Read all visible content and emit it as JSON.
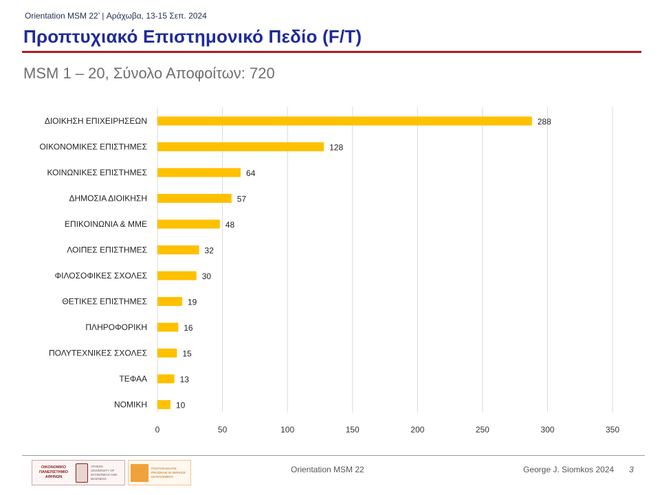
{
  "header": {
    "event": "Orientation MSM 22’ | Αράχωβα, 13-15 Σεπ. 2024",
    "title": "Προπτυχιακό Επιστημονικό Πεδίο (F/T)",
    "subtitle": "MSM 1 – 20, Σύνολο Αποφοίτων: 720"
  },
  "colors": {
    "bar": "#ffc000",
    "title": "#1f2a9a",
    "rule": "#b11c1c"
  },
  "chart_data": {
    "type": "bar",
    "orientation": "horizontal",
    "categories": [
      "ΔΙΟΙΚΗΣΗ ΕΠΙΧΕΙΡΗΣΕΩΝ",
      "ΟΙΚΟΝΟΜΙΚΕΣ ΕΠΙΣΤΗΜΕΣ",
      "ΚΟΙΝΩΝΙΚΕΣ ΕΠΙΣΤΗΜΕΣ",
      "ΔΗΜΟΣΙΑ ΔΙΟΙΚΗΣΗ",
      "ΕΠΙΚΟΙΝΩΝΙΑ & ΜΜΕ",
      "ΛΟΙΠΕΣ ΕΠΙΣΤΗΜΕΣ",
      "ΦΙΛΟΣΟΦΙΚΕΣ ΣΧΟΛΕΣ",
      "ΘΕΤΙΚΕΣ ΕΠΙΣΤΗΜΕΣ",
      "ΠΛΗΡΟΦΟΡΙΚΗ",
      "ΠΟΛΥΤΕΧΝΙΚΕΣ ΣΧΟΛΕΣ",
      "ΤΕΦΑΑ",
      "ΝΟΜΙΚΗ"
    ],
    "values": [
      288,
      128,
      64,
      57,
      48,
      32,
      30,
      19,
      16,
      15,
      13,
      10
    ],
    "xlim": [
      0,
      350
    ],
    "xticks": [
      0,
      50,
      100,
      150,
      200,
      250,
      300,
      350
    ],
    "grid": true,
    "data_labels": true,
    "title": "",
    "xlabel": "",
    "ylabel": ""
  },
  "footer": {
    "center": "Orientation MSM 22",
    "right": "George J. Siomkos 2024",
    "page": "3",
    "logo1": {
      "name_gr": "ΟΙΚΟΝΟΜΙΚΟ ΠΑΝΕΠΙΣΤΗΜΙΟ ΑΘΗΝΩΝ",
      "name_en": "ATHENS UNIVERSITY OF ECONOMICS AND BUSINESS"
    },
    "logo2": {
      "text": "POSTGRADUATE PROGRAM IN SERVICE MANAGEMENT"
    }
  }
}
